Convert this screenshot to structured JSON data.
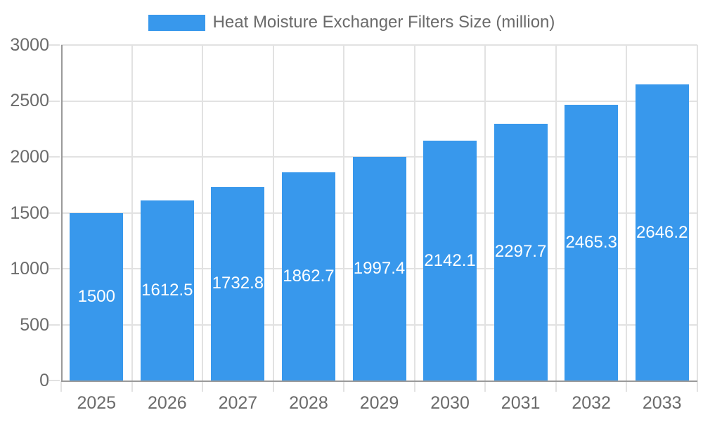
{
  "legend": {
    "label": "Heat Moisture Exchanger Filters Size (million)"
  },
  "chart_data": {
    "type": "bar",
    "title": "Heat Moisture Exchanger Filters Size (million)",
    "categories": [
      "2025",
      "2026",
      "2027",
      "2028",
      "2029",
      "2030",
      "2031",
      "2032",
      "2033"
    ],
    "series": [
      {
        "name": "Heat Moisture Exchanger Filters Size (million)",
        "values": [
          1500,
          1612.5,
          1732.8,
          1862.7,
          1997.4,
          2142.1,
          2297.7,
          2465.3,
          2646.2
        ],
        "value_labels": [
          "1500",
          "1612.5",
          "1732.8",
          "1862.7",
          "1997.4",
          "2142.1",
          "2297.7",
          "2465.3",
          "2646.2"
        ]
      }
    ],
    "xlabel": "",
    "ylabel": "",
    "ylim": [
      0,
      3000
    ],
    "yticks": [
      0,
      500,
      1000,
      1500,
      2000,
      2500,
      3000
    ],
    "grid": true,
    "legend_position": "top",
    "value_label_position": "bar-center",
    "colors": {
      "bar": "#3898EC",
      "grid": "#E2E2E2",
      "axis": "#9A9A9A",
      "tick_label": "#6B6B6B",
      "value_label": "#FFFFFF",
      "background": "#FFFFFF"
    }
  }
}
